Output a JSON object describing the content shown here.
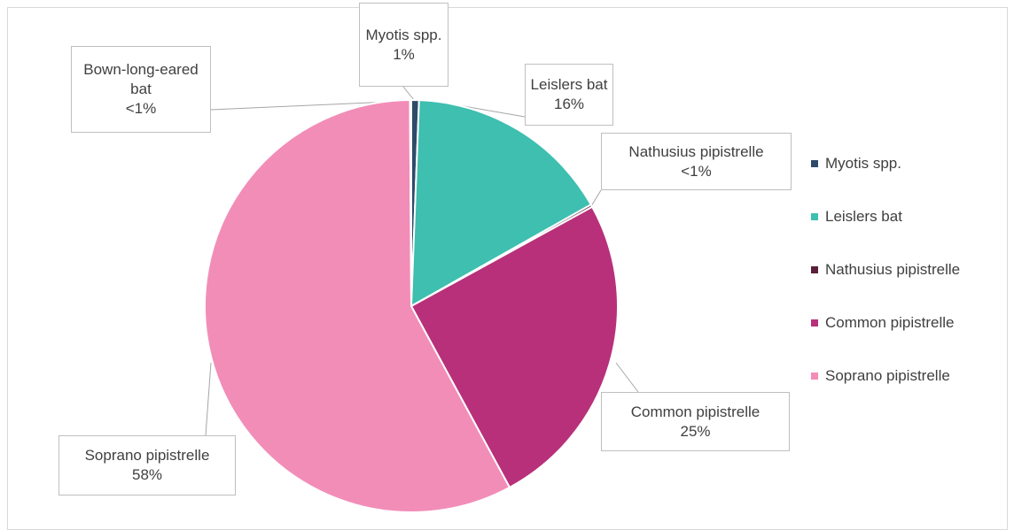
{
  "chart_data": {
    "type": "pie",
    "categories": [
      "Myotis spp.",
      "Leislers bat",
      "Nathusius pipistrelle",
      "Common pipistrelle",
      "Soprano pipistrelle",
      "Bown-long-eared bat"
    ],
    "values": [
      0.6,
      16.2,
      0.2,
      25.1,
      57.8,
      0.1
    ],
    "value_labels": [
      "1%",
      "16%",
      "<1%",
      "25%",
      "58%",
      "<1%"
    ],
    "colors": [
      "#2e4a6b",
      "#3ebfb0",
      "#5a1f3a",
      "#b8307a",
      "#f28db8",
      "#8c8c8c"
    ],
    "legend": [
      "Myotis spp.",
      "Leislers bat",
      "Nathusius pipistrelle",
      "Common pipistrelle",
      "Soprano pipistrelle"
    ],
    "legend_position": "right"
  }
}
